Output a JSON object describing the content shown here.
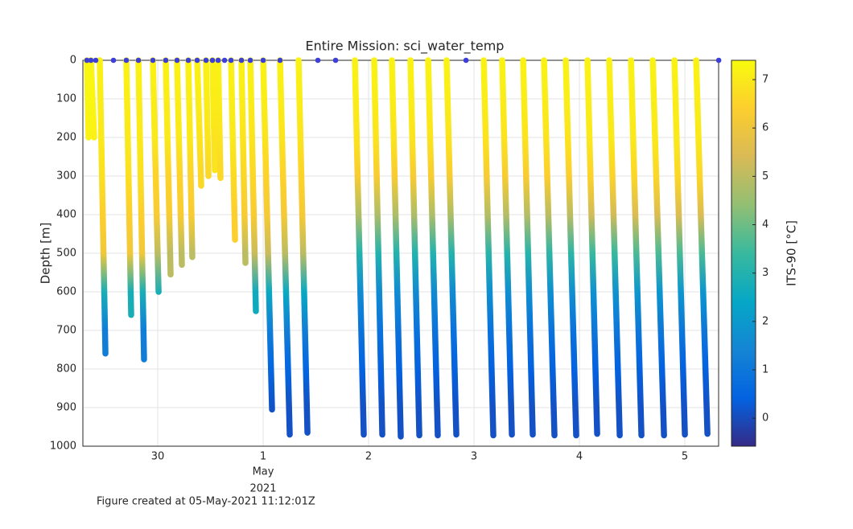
{
  "chart_data": {
    "type": "scatter",
    "title": "Entire Mission: sci_water_temp",
    "ylabel": "Depth [m]",
    "colorbar_label": "ITS-90 [°C]",
    "colormap": "parula",
    "x_month": "May",
    "x_year": "2021",
    "xlim": [
      29.29,
      35.32
    ],
    "xticks": [
      30,
      {
        "value": 31,
        "label": "1"
      },
      {
        "value": 32,
        "label": "2"
      },
      {
        "value": 33,
        "label": "3"
      },
      {
        "value": 34,
        "label": "4"
      },
      {
        "value": 35,
        "label": "5"
      }
    ],
    "ylim": [
      0,
      1000
    ],
    "y_reversed": true,
    "yticks": [
      0,
      100,
      200,
      300,
      400,
      500,
      600,
      700,
      800,
      900,
      1000
    ],
    "clim": [
      -0.58,
      7.4
    ],
    "cticks": [
      0,
      1,
      2,
      3,
      4,
      5,
      6,
      7
    ],
    "grid": true,
    "temp_depths": [
      0,
      100,
      200,
      300,
      400,
      500,
      600,
      700,
      800,
      900,
      1000
    ],
    "dives": [
      {
        "x": [
          29.328,
          29.344
        ],
        "depth": [
          0,
          200
        ],
        "temp": [
          7.3,
          7.3,
          7.2
        ]
      },
      {
        "x": [
          29.366,
          29.397
        ],
        "depth": [
          0,
          200
        ],
        "temp": [
          7.3,
          7.3,
          7.2
        ]
      },
      {
        "x": [
          29.45,
          29.504
        ],
        "depth": [
          0,
          760
        ],
        "temp": [
          7.2,
          7.1,
          7.0,
          6.8,
          6.4,
          6.1,
          2.8,
          1.2
        ]
      },
      {
        "x": [
          29.702,
          29.748
        ],
        "depth": [
          0,
          660
        ],
        "temp": [
          7.2,
          7.1,
          7.0,
          6.8,
          6.4,
          6.1,
          2.8
        ]
      },
      {
        "x": [
          29.817,
          29.87
        ],
        "depth": [
          0,
          775
        ],
        "temp": [
          7.2,
          7.1,
          7.0,
          6.8,
          6.4,
          6.1,
          2.8,
          1.2
        ]
      },
      {
        "x": [
          29.954,
          30.008
        ],
        "depth": [
          0,
          600
        ],
        "temp": [
          7.2,
          7.1,
          7.0,
          6.5,
          6.3,
          5.0,
          2.8
        ]
      },
      {
        "x": [
          30.076,
          30.122
        ],
        "depth": [
          0,
          555
        ],
        "temp": [
          7.2,
          7.1,
          7.0,
          6.5,
          6.3,
          5.0
        ]
      },
      {
        "x": [
          30.183,
          30.229
        ],
        "depth": [
          0,
          530
        ],
        "temp": [
          7.2,
          7.1,
          7.0,
          6.5,
          6.3,
          5.0
        ]
      },
      {
        "x": [
          30.29,
          30.328
        ],
        "depth": [
          0,
          510
        ],
        "temp": [
          7.2,
          7.1,
          7.0,
          6.5,
          6.3,
          5.0
        ]
      },
      {
        "x": [
          30.374,
          30.412
        ],
        "depth": [
          0,
          325
        ],
        "temp": [
          7.2,
          7.1,
          6.9,
          6.6
        ]
      },
      {
        "x": [
          30.458,
          30.481
        ],
        "depth": [
          0,
          300
        ],
        "temp": [
          7.2,
          7.1,
          6.9,
          6.6
        ]
      },
      {
        "x": [
          30.519,
          30.542
        ],
        "depth": [
          0,
          285
        ],
        "temp": [
          7.2,
          7.1,
          6.9
        ]
      },
      {
        "x": [
          30.573,
          30.595
        ],
        "depth": [
          0,
          305
        ],
        "temp": [
          7.2,
          7.1,
          6.9,
          6.6
        ]
      },
      {
        "x": [
          30.695,
          30.733
        ],
        "depth": [
          0,
          465
        ],
        "temp": [
          7.2,
          7.1,
          7.0,
          6.7,
          6.4
        ]
      },
      {
        "x": [
          30.794,
          30.832
        ],
        "depth": [
          0,
          525
        ],
        "temp": [
          7.2,
          7.1,
          6.9,
          6.6,
          6.3,
          5.0
        ]
      },
      {
        "x": [
          30.878,
          30.931
        ],
        "depth": [
          0,
          650
        ],
        "temp": [
          7.2,
          7.1,
          6.9,
          6.6,
          6.3,
          5.2,
          2.6
        ]
      },
      {
        "x": [
          31.0,
          31.084
        ],
        "depth": [
          0,
          905
        ],
        "temp": [
          7.2,
          7.1,
          6.9,
          6.5,
          6.2,
          5.2,
          2.5,
          1.2,
          0.5,
          0.1
        ]
      },
      {
        "x": [
          31.16,
          31.252
        ],
        "depth": [
          0,
          970
        ],
        "temp": [
          7.2,
          7.1,
          6.9,
          6.5,
          6.2,
          5.0,
          2.5,
          1.2,
          0.5,
          0.1
        ]
      },
      {
        "x": [
          31.336,
          31.42
        ],
        "depth": [
          0,
          965
        ],
        "temp": [
          7.2,
          7.1,
          6.9,
          6.5,
          6.2,
          5.0,
          2.5,
          1.2,
          0.5,
          0.1
        ]
      },
      {
        "x": [
          31.87,
          31.954
        ],
        "depth": [
          0,
          970
        ],
        "temp": [
          7.2,
          7.1,
          6.9,
          6.3,
          4.8,
          3.0,
          1.6,
          0.9,
          0.4,
          0.1
        ]
      },
      {
        "x": [
          32.053,
          32.13
        ],
        "depth": [
          0,
          970
        ],
        "temp": [
          7.2,
          7.1,
          6.9,
          6.3,
          4.8,
          3.0,
          1.6,
          0.9,
          0.4,
          0.1
        ]
      },
      {
        "x": [
          32.221,
          32.305
        ],
        "depth": [
          0,
          975
        ],
        "temp": [
          7.2,
          7.1,
          6.9,
          6.3,
          4.8,
          3.0,
          1.6,
          0.9,
          0.4,
          0.1
        ]
      },
      {
        "x": [
          32.397,
          32.481
        ],
        "depth": [
          0,
          972
        ],
        "temp": [
          7.2,
          7.1,
          6.9,
          6.3,
          4.8,
          3.0,
          1.6,
          0.9,
          0.4,
          0.1
        ]
      },
      {
        "x": [
          32.565,
          32.656
        ],
        "depth": [
          0,
          972
        ],
        "temp": [
          7.2,
          7.1,
          6.9,
          6.3,
          4.8,
          3.0,
          1.6,
          0.9,
          0.4,
          0.1
        ]
      },
      {
        "x": [
          32.74,
          32.832
        ],
        "depth": [
          0,
          970
        ],
        "temp": [
          7.2,
          7.1,
          6.9,
          6.3,
          4.8,
          3.0,
          1.6,
          0.9,
          0.4,
          0.1
        ]
      },
      {
        "x": [
          33.092,
          33.183
        ],
        "depth": [
          0,
          972
        ],
        "temp": [
          7.2,
          7.1,
          6.9,
          6.3,
          4.9,
          3.1,
          1.7,
          0.9,
          0.4,
          0.1
        ]
      },
      {
        "x": [
          33.267,
          33.359
        ],
        "depth": [
          0,
          970
        ],
        "temp": [
          7.2,
          7.1,
          6.9,
          6.3,
          4.9,
          3.1,
          1.7,
          0.9,
          0.4,
          0.1
        ]
      },
      {
        "x": [
          33.466,
          33.557
        ],
        "depth": [
          0,
          970
        ],
        "temp": [
          7.2,
          7.1,
          6.9,
          6.3,
          4.9,
          3.1,
          1.7,
          0.9,
          0.4,
          0.1
        ]
      },
      {
        "x": [
          33.664,
          33.763
        ],
        "depth": [
          0,
          972
        ],
        "temp": [
          7.2,
          7.1,
          6.9,
          6.4,
          5.0,
          3.2,
          1.7,
          0.9,
          0.4,
          0.1
        ]
      },
      {
        "x": [
          33.87,
          33.969
        ],
        "depth": [
          0,
          972
        ],
        "temp": [
          7.2,
          7.1,
          6.9,
          6.4,
          5.0,
          3.2,
          1.7,
          0.9,
          0.4,
          0.1
        ]
      },
      {
        "x": [
          34.076,
          34.168
        ],
        "depth": [
          0,
          968
        ],
        "temp": [
          7.2,
          7.1,
          7.0,
          6.5,
          5.3,
          3.4,
          1.8,
          1.0,
          0.4,
          0.1
        ]
      },
      {
        "x": [
          34.282,
          34.382
        ],
        "depth": [
          0,
          972
        ],
        "temp": [
          7.2,
          7.1,
          7.0,
          6.5,
          5.3,
          3.4,
          1.8,
          1.0,
          0.4,
          0.1
        ]
      },
      {
        "x": [
          34.489,
          34.588
        ],
        "depth": [
          0,
          972
        ],
        "temp": [
          7.2,
          7.1,
          7.0,
          6.6,
          5.5,
          3.6,
          1.9,
          1.0,
          0.4,
          0.1
        ]
      },
      {
        "x": [
          34.695,
          34.802
        ],
        "depth": [
          0,
          972
        ],
        "temp": [
          7.2,
          7.1,
          7.0,
          6.6,
          5.5,
          3.6,
          1.9,
          1.0,
          0.4,
          0.1
        ]
      },
      {
        "x": [
          34.901,
          35.0
        ],
        "depth": [
          0,
          970
        ],
        "temp": [
          7.2,
          7.1,
          7.0,
          6.6,
          5.5,
          3.6,
          1.9,
          1.0,
          0.4,
          0.1
        ]
      },
      {
        "x": [
          35.107,
          35.214
        ],
        "depth": [
          0,
          968
        ],
        "temp": [
          7.2,
          7.1,
          7.0,
          6.6,
          5.5,
          3.6,
          1.9,
          1.0,
          0.4,
          0.1
        ]
      }
    ],
    "surface": {
      "color": "#3d3fd9",
      "x": [
        29.328,
        29.366,
        29.412,
        29.58,
        29.702,
        29.817,
        29.954,
        30.076,
        30.183,
        30.29,
        30.374,
        30.458,
        30.519,
        30.573,
        30.634,
        30.695,
        30.794,
        30.878,
        31.0,
        31.16,
        31.519,
        31.687,
        32.924,
        35.321
      ],
      "depth": [
        0,
        0,
        0,
        0,
        0,
        0,
        0,
        0,
        0,
        0,
        0,
        0,
        0,
        0,
        0,
        0,
        0,
        0,
        0,
        0,
        0,
        0,
        0,
        0
      ]
    }
  },
  "footer": "Figure created at 05-May-2021 11:12:01Z"
}
